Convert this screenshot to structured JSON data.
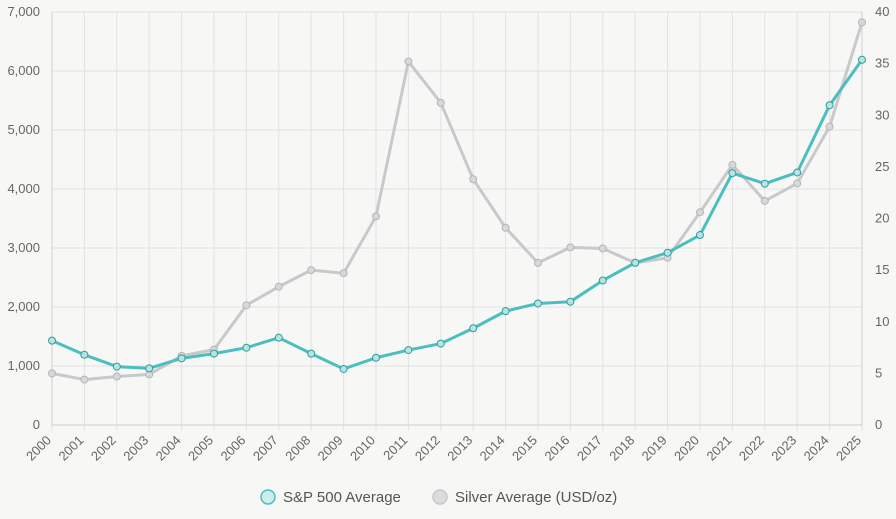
{
  "chart_data": {
    "type": "line",
    "x": [
      "2000",
      "2001",
      "2002",
      "2003",
      "2004",
      "2005",
      "2006",
      "2007",
      "2008",
      "2009",
      "2010",
      "2011",
      "2012",
      "2013",
      "2014",
      "2015",
      "2016",
      "2017",
      "2018",
      "2019",
      "2020",
      "2021",
      "2022",
      "2023",
      "2024",
      "2025"
    ],
    "series": [
      {
        "name": "S&P 500 Average",
        "axis": "left",
        "color": "#4bbfbf",
        "values": [
          1430,
          1190,
          990,
          960,
          1130,
          1210,
          1310,
          1480,
          1210,
          950,
          1140,
          1270,
          1380,
          1640,
          1930,
          2060,
          2090,
          2450,
          2750,
          2920,
          3220,
          4270,
          4090,
          4280,
          5420,
          6190
        ]
      },
      {
        "name": "Silver Average (USD/oz)",
        "axis": "right",
        "color": "#c9c9cc",
        "values": [
          5.0,
          4.4,
          4.7,
          4.9,
          6.7,
          7.3,
          11.6,
          13.4,
          15.0,
          14.7,
          20.2,
          35.2,
          31.2,
          23.8,
          19.1,
          15.7,
          17.2,
          17.1,
          15.7,
          16.2,
          20.6,
          25.2,
          21.7,
          23.4,
          28.9,
          39.0
        ]
      }
    ],
    "y_left": {
      "range": [
        0,
        7000
      ],
      "ticks": [
        "0",
        "1,000",
        "2,000",
        "3,000",
        "4,000",
        "5,000",
        "6,000",
        "7,000"
      ],
      "tick_values": [
        0,
        1000,
        2000,
        3000,
        4000,
        5000,
        6000,
        7000
      ]
    },
    "y_right": {
      "range": [
        0,
        40
      ],
      "ticks": [
        "0",
        "5",
        "10",
        "15",
        "20",
        "25",
        "30",
        "35",
        "40"
      ],
      "tick_values": [
        0,
        5,
        10,
        15,
        20,
        25,
        30,
        35,
        40
      ]
    },
    "grid": true,
    "legend": "bottom-center"
  }
}
